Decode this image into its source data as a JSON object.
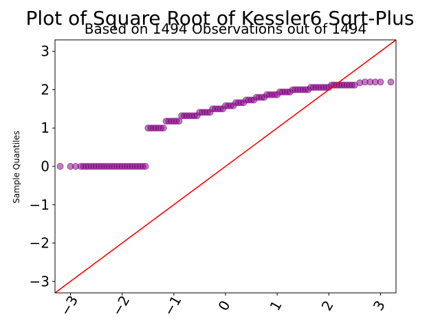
{
  "chart_data": {
    "type": "scatter",
    "title": "Plot of Square Root of Kessler6 Sqrt-Plus",
    "subtitle": "Based on 1494 Observations out of 1494",
    "xlabel": "",
    "ylabel": "Sample Quantiles",
    "xlim": [
      -3.3,
      3.3
    ],
    "ylim": [
      -3.3,
      3.3
    ],
    "xticks": [
      -3,
      -2,
      -1,
      0,
      1,
      2,
      3
    ],
    "xtick_labels": [
      "−3",
      "−2",
      "−1",
      "0",
      "1",
      "2",
      "3"
    ],
    "yticks": [
      -3,
      -2,
      -1,
      0,
      1,
      2,
      3
    ],
    "ytick_labels": [
      "−3",
      "−2",
      "−1",
      "0",
      "1",
      "2",
      "3"
    ],
    "point_color": "#800080",
    "line_color": "#ff0000",
    "reference_line": {
      "type": "45-degree",
      "points": [
        [
          -3.3,
          -3.3
        ],
        [
          3.3,
          3.3
        ]
      ]
    },
    "grid": false,
    "points": [
      [
        -3.2,
        0.0
      ],
      [
        -3.0,
        0.0
      ],
      [
        -2.9,
        0.0
      ],
      [
        -2.8,
        0.0
      ],
      [
        -2.75,
        0.0
      ],
      [
        -2.7,
        0.0
      ],
      [
        -2.65,
        0.0
      ],
      [
        -2.6,
        0.0
      ],
      [
        -2.55,
        0.0
      ],
      [
        -2.5,
        0.0
      ],
      [
        -2.45,
        0.0
      ],
      [
        -2.4,
        0.0
      ],
      [
        -2.35,
        0.0
      ],
      [
        -2.3,
        0.0
      ],
      [
        -2.25,
        0.0
      ],
      [
        -2.2,
        0.0
      ],
      [
        -2.15,
        0.0
      ],
      [
        -2.1,
        0.0
      ],
      [
        -2.05,
        0.0
      ],
      [
        -2.0,
        0.0
      ],
      [
        -1.95,
        0.0
      ],
      [
        -1.9,
        0.0
      ],
      [
        -1.85,
        0.0
      ],
      [
        -1.8,
        0.0
      ],
      [
        -1.75,
        0.0
      ],
      [
        -1.7,
        0.0
      ],
      [
        -1.65,
        0.0
      ],
      [
        -1.6,
        0.0
      ],
      [
        -1.55,
        0.0
      ],
      [
        -1.5,
        1.0
      ],
      [
        -1.45,
        1.0
      ],
      [
        -1.4,
        1.0
      ],
      [
        -1.35,
        1.0
      ],
      [
        -1.3,
        1.0
      ],
      [
        -1.25,
        1.0
      ],
      [
        -1.2,
        1.0
      ],
      [
        -1.15,
        1.18
      ],
      [
        -1.1,
        1.18
      ],
      [
        -1.05,
        1.18
      ],
      [
        -1.0,
        1.18
      ],
      [
        -0.95,
        1.18
      ],
      [
        -0.9,
        1.18
      ],
      [
        -0.85,
        1.32
      ],
      [
        -0.8,
        1.32
      ],
      [
        -0.75,
        1.32
      ],
      [
        -0.7,
        1.32
      ],
      [
        -0.65,
        1.32
      ],
      [
        -0.6,
        1.32
      ],
      [
        -0.55,
        1.32
      ],
      [
        -0.5,
        1.41
      ],
      [
        -0.45,
        1.41
      ],
      [
        -0.4,
        1.41
      ],
      [
        -0.35,
        1.41
      ],
      [
        -0.3,
        1.41
      ],
      [
        -0.25,
        1.5
      ],
      [
        -0.2,
        1.5
      ],
      [
        -0.15,
        1.5
      ],
      [
        -0.1,
        1.5
      ],
      [
        -0.05,
        1.5
      ],
      [
        0.0,
        1.58
      ],
      [
        0.05,
        1.58
      ],
      [
        0.1,
        1.58
      ],
      [
        0.15,
        1.58
      ],
      [
        0.2,
        1.66
      ],
      [
        0.25,
        1.66
      ],
      [
        0.3,
        1.66
      ],
      [
        0.35,
        1.66
      ],
      [
        0.4,
        1.73
      ],
      [
        0.45,
        1.73
      ],
      [
        0.5,
        1.73
      ],
      [
        0.55,
        1.73
      ],
      [
        0.6,
        1.8
      ],
      [
        0.65,
        1.8
      ],
      [
        0.7,
        1.8
      ],
      [
        0.75,
        1.8
      ],
      [
        0.8,
        1.87
      ],
      [
        0.85,
        1.87
      ],
      [
        0.9,
        1.87
      ],
      [
        0.95,
        1.87
      ],
      [
        1.0,
        1.87
      ],
      [
        1.05,
        1.94
      ],
      [
        1.1,
        1.94
      ],
      [
        1.15,
        1.94
      ],
      [
        1.2,
        1.94
      ],
      [
        1.25,
        1.94
      ],
      [
        1.3,
        2.0
      ],
      [
        1.35,
        2.0
      ],
      [
        1.4,
        2.0
      ],
      [
        1.45,
        2.0
      ],
      [
        1.5,
        2.0
      ],
      [
        1.55,
        2.0
      ],
      [
        1.6,
        2.0
      ],
      [
        1.65,
        2.06
      ],
      [
        1.7,
        2.06
      ],
      [
        1.75,
        2.06
      ],
      [
        1.8,
        2.06
      ],
      [
        1.85,
        2.06
      ],
      [
        1.9,
        2.06
      ],
      [
        1.95,
        2.06
      ],
      [
        2.0,
        2.06
      ],
      [
        2.05,
        2.12
      ],
      [
        2.1,
        2.12
      ],
      [
        2.15,
        2.12
      ],
      [
        2.2,
        2.12
      ],
      [
        2.25,
        2.12
      ],
      [
        2.3,
        2.12
      ],
      [
        2.35,
        2.12
      ],
      [
        2.4,
        2.12
      ],
      [
        2.45,
        2.12
      ],
      [
        2.5,
        2.12
      ],
      [
        2.6,
        2.18
      ],
      [
        2.7,
        2.2
      ],
      [
        2.8,
        2.2
      ],
      [
        2.9,
        2.2
      ],
      [
        3.0,
        2.2
      ],
      [
        3.2,
        2.2
      ]
    ]
  }
}
